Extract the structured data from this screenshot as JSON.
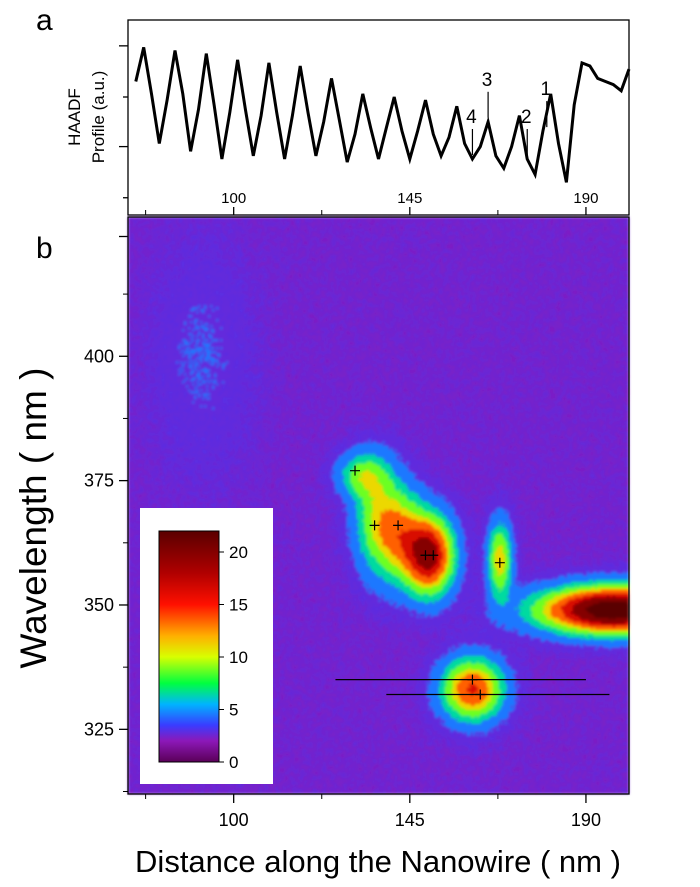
{
  "panel_labels": {
    "a": "a",
    "b": "b"
  },
  "chart_data": [
    {
      "type": "line",
      "panel": "a",
      "ylabel_line1": "HAADF",
      "ylabel_line2": "Profile (a.u.)",
      "xlim": [
        73,
        201
      ],
      "x_ticks": [
        100,
        145,
        190
      ],
      "x_tick_labels": [
        "100",
        "145",
        "190"
      ],
      "x": [
        75,
        77,
        79,
        81,
        83,
        85,
        87,
        89,
        91,
        93,
        95,
        97,
        99,
        101,
        103,
        105,
        107,
        109,
        111,
        113,
        115,
        117,
        119,
        121,
        123,
        125,
        127,
        129,
        131,
        133,
        135,
        137,
        139,
        141,
        143,
        145,
        147,
        149,
        151,
        153,
        155,
        157,
        159,
        161,
        163,
        165,
        167,
        169,
        171,
        173,
        175,
        177,
        179,
        181,
        183,
        185,
        187,
        189,
        191,
        193,
        195,
        197,
        199,
        201
      ],
      "values": [
        0.7,
        0.92,
        0.62,
        0.3,
        0.58,
        0.9,
        0.62,
        0.25,
        0.52,
        0.88,
        0.55,
        0.2,
        0.5,
        0.84,
        0.52,
        0.22,
        0.48,
        0.82,
        0.5,
        0.2,
        0.48,
        0.8,
        0.5,
        0.22,
        0.44,
        0.72,
        0.45,
        0.18,
        0.36,
        0.62,
        0.4,
        0.2,
        0.4,
        0.6,
        0.38,
        0.2,
        0.38,
        0.58,
        0.36,
        0.22,
        0.34,
        0.54,
        0.3,
        0.2,
        0.28,
        0.44,
        0.22,
        0.14,
        0.28,
        0.48,
        0.2,
        0.1,
        0.38,
        0.62,
        0.3,
        0.05,
        0.55,
        0.82,
        0.8,
        0.72,
        0.7,
        0.68,
        0.64,
        0.78
      ],
      "annotations": [
        {
          "text": "1",
          "x": 180
        },
        {
          "text": "2",
          "x": 175
        },
        {
          "text": "3",
          "x": 165
        },
        {
          "text": "4",
          "x": 161
        }
      ]
    },
    {
      "type": "heatmap",
      "panel": "b",
      "xlabel": "Distance along the Nanowire ( nm )",
      "ylabel": "Wavelength ( nm )",
      "xlim": [
        73,
        201
      ],
      "ylim": [
        312,
        428
      ],
      "x_ticks": [
        100,
        145,
        190
      ],
      "x_tick_labels": [
        "100",
        "145",
        "190"
      ],
      "y_ticks": [
        325,
        350,
        375,
        400
      ],
      "y_tick_labels": [
        "325",
        "350",
        "375",
        "400"
      ],
      "background_level": 2.5,
      "blobs": [
        {
          "x": 150,
          "y": 360,
          "sx": 4,
          "sy": 5,
          "value": 17
        },
        {
          "x": 143,
          "y": 364,
          "sx": 4,
          "sy": 6,
          "value": 8
        },
        {
          "x": 137,
          "y": 367,
          "sx": 4,
          "sy": 7,
          "value": 7
        },
        {
          "x": 133,
          "y": 376,
          "sx": 4,
          "sy": 3,
          "value": 6
        },
        {
          "x": 168,
          "y": 359,
          "sx": 2,
          "sy": 5,
          "value": 9
        },
        {
          "x": 161,
          "y": 333,
          "sx": 5,
          "sy": 4,
          "value": 13
        },
        {
          "x": 197,
          "y": 349,
          "sx": 12,
          "sy": 3,
          "value": 23
        },
        {
          "x": 92,
          "y": 400,
          "sx": 8,
          "sy": 14,
          "value": 1.0
        }
      ],
      "peak_markers": [
        {
          "x": 131,
          "y": 377
        },
        {
          "x": 136,
          "y": 366
        },
        {
          "x": 142,
          "y": 366
        },
        {
          "x": 149,
          "y": 360
        },
        {
          "x": 151,
          "y": 360
        },
        {
          "x": 168,
          "y": 358.5
        },
        {
          "x": 161,
          "y": 335
        },
        {
          "x": 163,
          "y": 332
        }
      ],
      "reference_lines": [
        {
          "x1": 126,
          "x2": 190,
          "y": 335
        },
        {
          "x1": 139,
          "x2": 196,
          "y": 332
        }
      ],
      "colorbar": {
        "min": 0,
        "max": 22,
        "ticks": [
          0,
          5,
          10,
          15,
          20
        ],
        "tick_labels": [
          "0",
          "5",
          "10",
          "15",
          "20"
        ],
        "stops": [
          {
            "v": 0,
            "color": "#5a0058"
          },
          {
            "v": 2,
            "color": "#8c18b8"
          },
          {
            "v": 3.5,
            "color": "#3a3cff"
          },
          {
            "v": 5.5,
            "color": "#00b4ff"
          },
          {
            "v": 7.5,
            "color": "#00ff40"
          },
          {
            "v": 10,
            "color": "#d8ff00"
          },
          {
            "v": 12,
            "color": "#ffb000"
          },
          {
            "v": 15,
            "color": "#ff1000"
          },
          {
            "v": 18,
            "color": "#b00000"
          },
          {
            "v": 22,
            "color": "#5a0000"
          }
        ]
      }
    }
  ]
}
